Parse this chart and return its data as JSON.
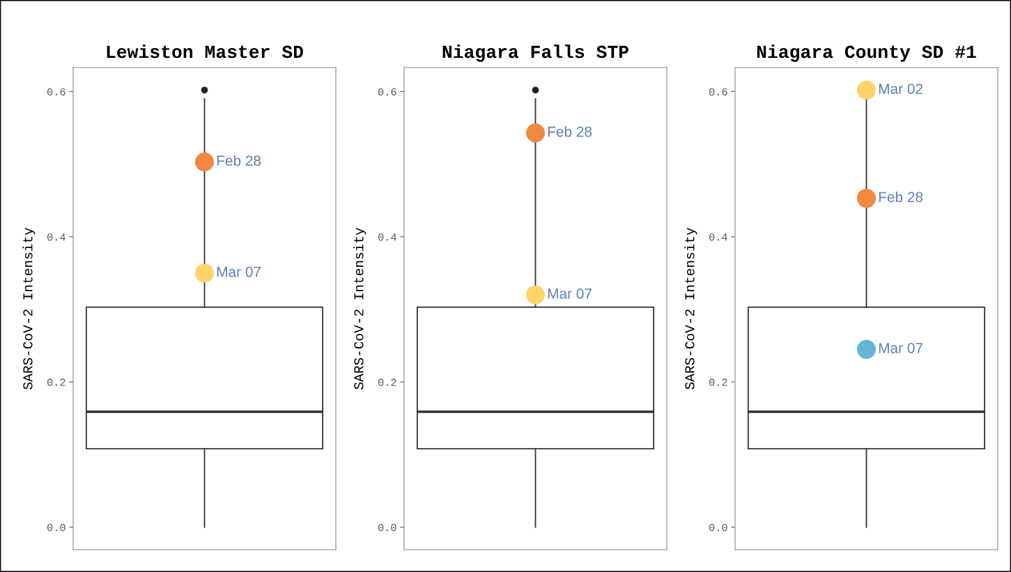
{
  "chart_data": [
    {
      "type": "box",
      "title": "Lewiston Master SD",
      "ylabel": "SARS-CoV-2 Intensity",
      "categories": [
        null
      ],
      "boxes": [
        {
          "low": 0.0,
          "q1": 0.108,
          "median": 0.159,
          "q3": 0.303,
          "high": 0.59,
          "outliers": [
            0.602
          ]
        }
      ],
      "series": [
        {
          "type": "scatter",
          "name": "Feb 28",
          "color": "#f0883e",
          "values": [
            0.503
          ]
        },
        {
          "type": "scatter",
          "name": "Mar 07",
          "color": "#fdd36a",
          "values": [
            0.35
          ]
        }
      ],
      "ylim": [
        -0.031,
        0.633
      ],
      "yticks": [
        {
          "value": 0,
          "label": "0.0"
        },
        {
          "value": 0.2,
          "label": "0.2"
        },
        {
          "value": 0.4,
          "label": "0.4"
        },
        {
          "value": 0.6,
          "label": "0.6"
        }
      ],
      "tick_labels": "y",
      "grid": false,
      "legend": false
    },
    {
      "type": "box",
      "title": "Niagara Falls STP",
      "ylabel": "SARS-CoV-2 Intensity",
      "categories": [
        null
      ],
      "boxes": [
        {
          "low": 0.0,
          "q1": 0.108,
          "median": 0.159,
          "q3": 0.303,
          "high": 0.59,
          "outliers": [
            0.602
          ]
        }
      ],
      "series": [
        {
          "type": "scatter",
          "name": "Feb 28",
          "color": "#f0883e",
          "values": [
            0.543
          ]
        },
        {
          "type": "scatter",
          "name": "Mar 07",
          "color": "#fdd36a",
          "values": [
            0.32
          ]
        }
      ],
      "ylim": [
        -0.031,
        0.633
      ],
      "yticks": [
        {
          "value": 0,
          "label": "0.0"
        },
        {
          "value": 0.2,
          "label": "0.2"
        },
        {
          "value": 0.4,
          "label": "0.4"
        },
        {
          "value": 0.6,
          "label": "0.6"
        }
      ],
      "tick_labels": "y",
      "grid": false,
      "legend": false
    },
    {
      "type": "box",
      "title": "Niagara County SD #1",
      "ylabel": "SARS-CoV-2 Intensity",
      "categories": [
        null
      ],
      "boxes": [
        {
          "low": 0.0,
          "q1": 0.108,
          "median": 0.159,
          "q3": 0.303,
          "high": 0.6
        }
      ],
      "series": [
        {
          "type": "scatter",
          "name": "Mar 02",
          "color": "#fdd36a",
          "values": [
            0.602
          ]
        },
        {
          "type": "scatter",
          "name": "Feb 28",
          "color": "#f0883e",
          "values": [
            0.453
          ]
        },
        {
          "type": "scatter",
          "name": "Mar 07",
          "color": "#62b6d6",
          "values": [
            0.245
          ]
        }
      ],
      "ylim": [
        -0.031,
        0.633
      ],
      "yticks": [
        {
          "value": 0,
          "label": "0.0"
        },
        {
          "value": 0.2,
          "label": "0.2"
        },
        {
          "value": 0.4,
          "label": "0.4"
        },
        {
          "value": 0.6,
          "label": "0.6"
        }
      ],
      "tick_labels": "y",
      "grid": false,
      "legend": false
    }
  ]
}
